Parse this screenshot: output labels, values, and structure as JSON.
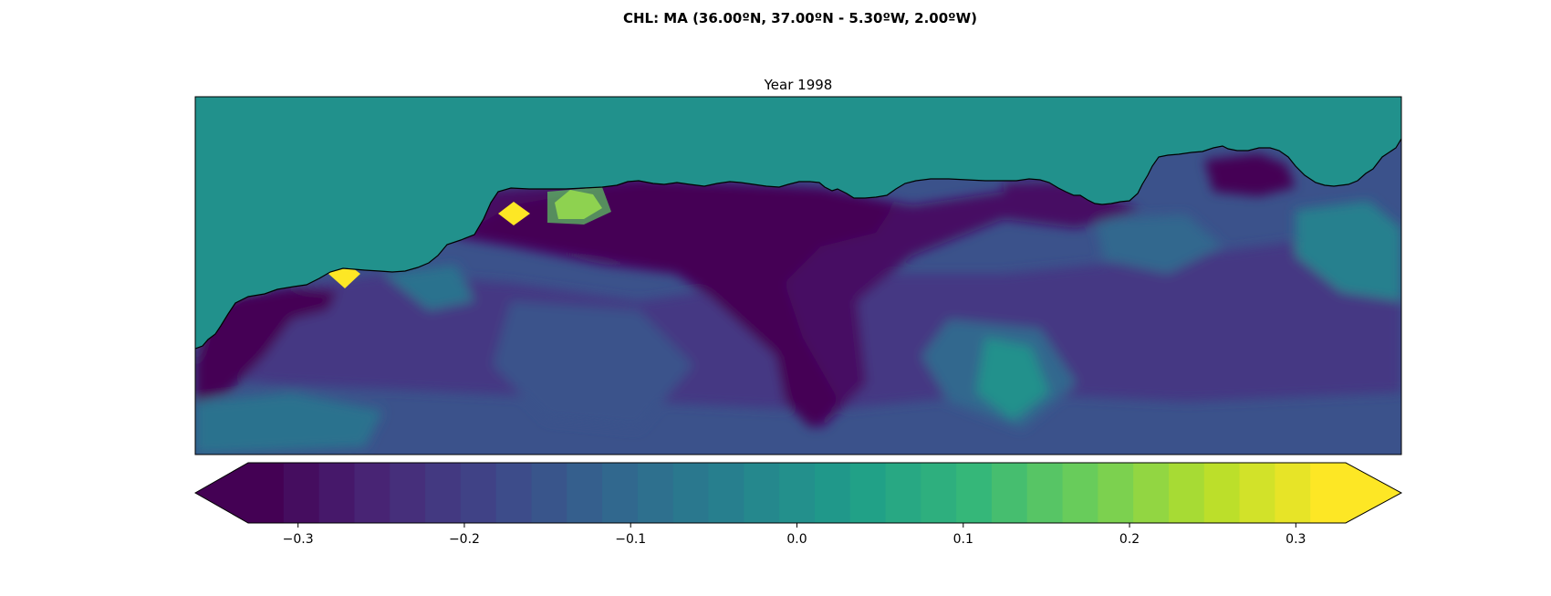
{
  "figure": {
    "suptitle": "CHL: MA (36.00ºN, 37.00ºN - 5.30ºW, 2.00ºW)"
  },
  "chart_data": {
    "type": "heatmap",
    "title": "Year 1998",
    "region": {
      "lat_range": [
        36.0,
        37.0
      ],
      "lon_range": [
        -5.3,
        -2.0
      ]
    },
    "land_value": 0.0,
    "colormap": "viridis",
    "colorbar": {
      "vmin": -0.33,
      "vmax": 0.33,
      "levels": 31,
      "extend": "both",
      "ticks": [
        -0.3,
        -0.2,
        -0.1,
        0.0,
        0.1,
        0.2,
        0.3
      ],
      "tick_labels": [
        "−0.3",
        "−0.2",
        "−0.1",
        "0.0",
        "0.1",
        "0.2",
        "0.3"
      ]
    },
    "coastline_color": "#000000",
    "land_color": "#21918c"
  }
}
